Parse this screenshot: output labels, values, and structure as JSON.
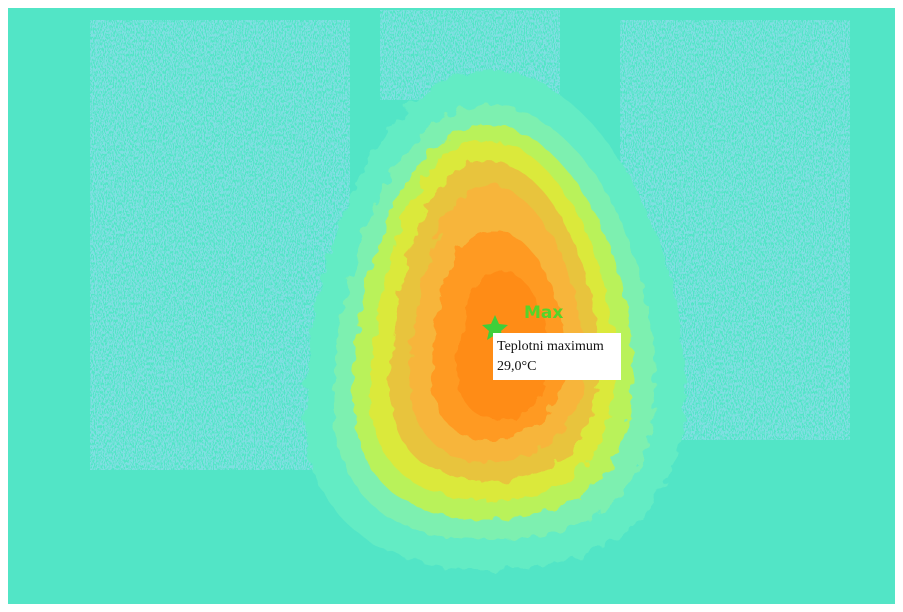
{
  "marker": {
    "label": "Max"
  },
  "tooltip": {
    "title": "Teplotni maximum",
    "value": "29,0°C"
  }
}
